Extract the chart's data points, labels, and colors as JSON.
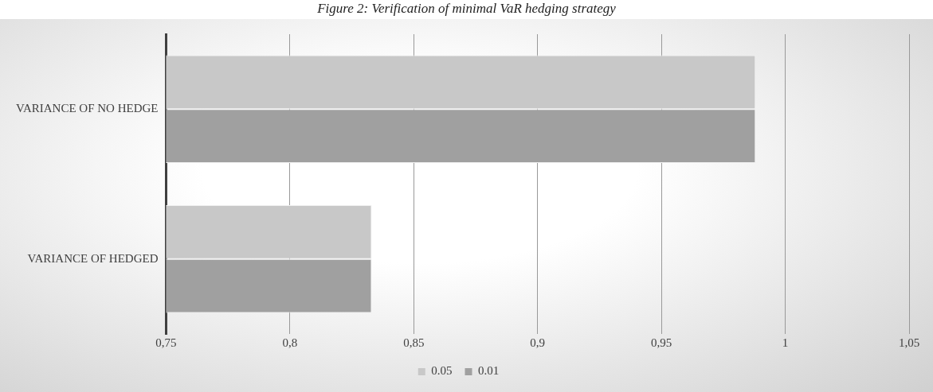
{
  "chart_data": {
    "type": "bar",
    "orientation": "horizontal",
    "title": "Figure 2: Verification of minimal VaR hedging strategy",
    "categories": [
      "VARIANCE OF NO HEDGE",
      "VARIANCE OF HEDGED"
    ],
    "series": [
      {
        "name": "0.05",
        "color": "#c8c8c8",
        "values": [
          0.988,
          0.833
        ]
      },
      {
        "name": "0.01",
        "color": "#a0a0a0",
        "values": [
          0.988,
          0.833
        ]
      }
    ],
    "xlim": [
      0.75,
      1.05
    ],
    "xticks": [
      {
        "value": 0.75,
        "label": "0,75"
      },
      {
        "value": 0.8,
        "label": "0,8"
      },
      {
        "value": 0.85,
        "label": "0,85"
      },
      {
        "value": 0.9,
        "label": "0,9"
      },
      {
        "value": 0.95,
        "label": "0,95"
      },
      {
        "value": 1,
        "label": "1"
      },
      {
        "value": 1.05,
        "label": "1,05"
      }
    ],
    "grid": "x",
    "legend": "bottom"
  }
}
